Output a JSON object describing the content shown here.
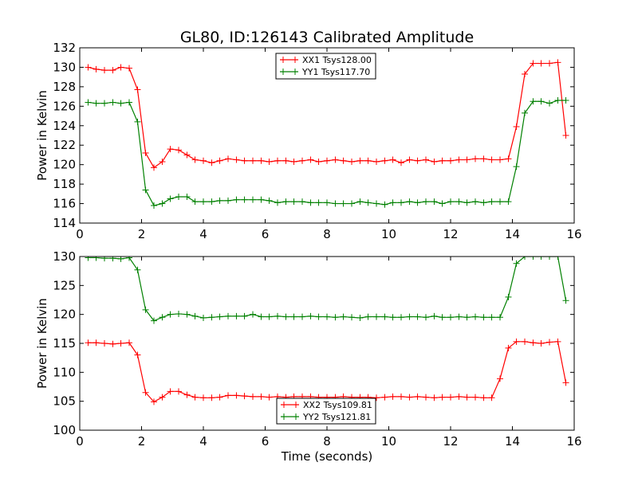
{
  "figure": {
    "title": "GL80, ID:126143 Calibrated Amplitude"
  },
  "chart_data": [
    {
      "type": "line",
      "title": "GL80, ID:126143 Calibrated Amplitude",
      "xlabel": "",
      "ylabel": "Power in Kelvin",
      "xlim": [
        0,
        16
      ],
      "ylim": [
        114,
        132
      ],
      "xticks": [
        0,
        2,
        4,
        6,
        8,
        10,
        12,
        14,
        16
      ],
      "yticks": [
        114,
        116,
        118,
        120,
        122,
        124,
        126,
        128,
        130,
        132
      ],
      "grid": false,
      "legend_position": "top-center",
      "x": [
        0.27,
        0.53,
        0.8,
        1.07,
        1.33,
        1.6,
        1.87,
        2.13,
        2.4,
        2.67,
        2.93,
        3.2,
        3.47,
        3.73,
        4.0,
        4.27,
        4.53,
        4.8,
        5.07,
        5.33,
        5.6,
        5.87,
        6.13,
        6.4,
        6.67,
        6.93,
        7.2,
        7.47,
        7.73,
        8.0,
        8.27,
        8.53,
        8.8,
        9.07,
        9.33,
        9.6,
        9.87,
        10.13,
        10.4,
        10.67,
        10.93,
        11.2,
        11.47,
        11.73,
        12.0,
        12.27,
        12.53,
        12.8,
        13.07,
        13.33,
        13.6,
        13.87,
        14.13,
        14.4,
        14.67,
        14.93,
        15.2,
        15.47,
        15.73
      ],
      "series": [
        {
          "name": "XX1 Tsys128.00",
          "color": "#ff0000",
          "values": [
            130.0,
            129.8,
            129.7,
            129.7,
            130.0,
            129.9,
            127.7,
            121.2,
            119.7,
            120.3,
            121.6,
            121.5,
            121.0,
            120.5,
            120.4,
            120.2,
            120.4,
            120.6,
            120.5,
            120.4,
            120.4,
            120.4,
            120.3,
            120.4,
            120.4,
            120.3,
            120.4,
            120.5,
            120.3,
            120.4,
            120.5,
            120.4,
            120.3,
            120.4,
            120.4,
            120.3,
            120.4,
            120.5,
            120.2,
            120.5,
            120.4,
            120.5,
            120.3,
            120.4,
            120.4,
            120.5,
            120.5,
            120.6,
            120.6,
            120.5,
            120.5,
            120.6,
            123.9,
            129.3,
            130.4,
            130.4,
            130.4,
            130.5,
            123.0
          ]
        },
        {
          "name": "YY1 Tsys117.70",
          "color": "#008000",
          "values": [
            126.4,
            126.3,
            126.3,
            126.4,
            126.3,
            126.4,
            124.4,
            117.4,
            115.8,
            116.0,
            116.5,
            116.7,
            116.7,
            116.2,
            116.2,
            116.2,
            116.3,
            116.3,
            116.4,
            116.4,
            116.4,
            116.4,
            116.3,
            116.1,
            116.2,
            116.2,
            116.2,
            116.1,
            116.1,
            116.1,
            116.0,
            116.0,
            116.0,
            116.2,
            116.1,
            116.0,
            115.9,
            116.1,
            116.1,
            116.2,
            116.1,
            116.2,
            116.2,
            116.0,
            116.2,
            116.2,
            116.1,
            116.2,
            116.1,
            116.2,
            116.2,
            116.2,
            119.8,
            125.3,
            126.5,
            126.5,
            126.3,
            126.6,
            126.6
          ]
        }
      ]
    },
    {
      "type": "line",
      "title": "",
      "xlabel": "Time (seconds)",
      "ylabel": "Power in Kelvin",
      "xlim": [
        0,
        16
      ],
      "ylim": [
        100,
        130
      ],
      "xticks": [
        0,
        2,
        4,
        6,
        8,
        10,
        12,
        14,
        16
      ],
      "yticks": [
        100,
        105,
        110,
        115,
        120,
        125,
        130
      ],
      "grid": false,
      "legend_position": "bottom-center",
      "x": [
        0.27,
        0.53,
        0.8,
        1.07,
        1.33,
        1.6,
        1.87,
        2.13,
        2.4,
        2.67,
        2.93,
        3.2,
        3.47,
        3.73,
        4.0,
        4.27,
        4.53,
        4.8,
        5.07,
        5.33,
        5.6,
        5.87,
        6.13,
        6.4,
        6.67,
        6.93,
        7.2,
        7.47,
        7.73,
        8.0,
        8.27,
        8.53,
        8.8,
        9.07,
        9.33,
        9.6,
        9.87,
        10.13,
        10.4,
        10.67,
        10.93,
        11.2,
        11.47,
        11.73,
        12.0,
        12.27,
        12.53,
        12.8,
        13.07,
        13.33,
        13.6,
        13.87,
        14.13,
        14.4,
        14.67,
        14.93,
        15.2,
        15.47,
        15.73
      ],
      "series": [
        {
          "name": "XX2 Tsys109.81",
          "color": "#ff0000",
          "values": [
            115.1,
            115.1,
            115.0,
            114.9,
            115.0,
            115.1,
            113.0,
            106.5,
            104.9,
            105.7,
            106.7,
            106.7,
            106.1,
            105.7,
            105.6,
            105.6,
            105.7,
            106.0,
            106.0,
            105.9,
            105.8,
            105.8,
            105.7,
            105.8,
            105.7,
            105.8,
            105.8,
            105.8,
            105.7,
            105.7,
            105.7,
            105.8,
            105.7,
            105.7,
            105.7,
            105.6,
            105.7,
            105.8,
            105.8,
            105.7,
            105.8,
            105.7,
            105.6,
            105.7,
            105.7,
            105.8,
            105.7,
            105.7,
            105.6,
            105.6,
            108.9,
            114.2,
            115.3,
            115.3,
            115.1,
            115.0,
            115.2,
            115.3,
            108.2
          ]
        },
        {
          "name": "YY2 Tsys121.81",
          "color": "#008000",
          "values": [
            129.8,
            129.8,
            129.7,
            129.7,
            129.6,
            129.8,
            127.7,
            120.8,
            118.9,
            119.5,
            120.0,
            120.1,
            120.0,
            119.7,
            119.4,
            119.5,
            119.6,
            119.7,
            119.7,
            119.7,
            120.0,
            119.6,
            119.6,
            119.7,
            119.6,
            119.6,
            119.6,
            119.7,
            119.6,
            119.6,
            119.5,
            119.6,
            119.5,
            119.4,
            119.6,
            119.6,
            119.6,
            119.5,
            119.5,
            119.6,
            119.6,
            119.5,
            119.7,
            119.5,
            119.5,
            119.6,
            119.5,
            119.6,
            119.5,
            119.5,
            119.5,
            123.0,
            128.8,
            130.0,
            130.0,
            130.0,
            130.0,
            130.0,
            122.4
          ]
        }
      ]
    }
  ]
}
